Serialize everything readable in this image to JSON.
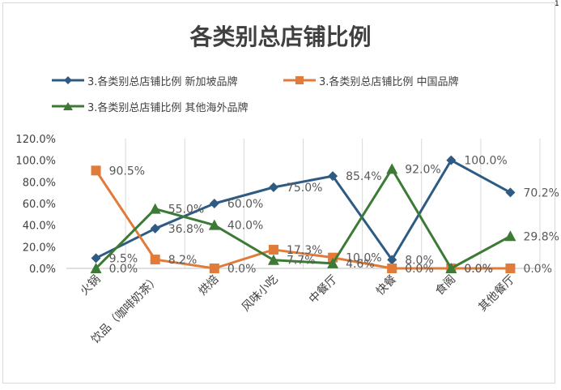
{
  "page": {
    "corner_mark": "1"
  },
  "chart_data": {
    "type": "line",
    "title": "各类别总店铺比例",
    "categories": [
      "火锅",
      "饮品（咖啡奶茶）",
      "烘焙",
      "风味小吃",
      "中餐厅",
      "快餐",
      "食阁",
      "其他餐厅"
    ],
    "y_ticks": [
      "0.0%",
      "20.0%",
      "40.0%",
      "60.0%",
      "80.0%",
      "100.0%",
      "120.0%"
    ],
    "ylim": [
      0,
      120
    ],
    "grid": "vertical",
    "legend_position": "top",
    "series": [
      {
        "name": "3.各类别总店铺比例 新加坡品牌",
        "color": "#2e5b84",
        "marker": "diamond",
        "values": [
          9.5,
          36.8,
          60.0,
          75.0,
          85.4,
          8.0,
          100.0,
          70.2
        ],
        "labels": [
          "9.5%",
          "36.8%",
          "60.0%",
          "75.0%",
          "85.4%",
          "8.0%",
          "100.0%",
          "70.2%"
        ]
      },
      {
        "name": "3.各类别总店铺比例 中国品牌",
        "color": "#e07b39",
        "marker": "square",
        "values": [
          90.5,
          8.2,
          0.0,
          17.3,
          10.0,
          0.0,
          0.0,
          0.0
        ],
        "labels": [
          "90.5%",
          "8.2%",
          "0.0%",
          "17.3%",
          "10.0%",
          "0.0%",
          "0.0%",
          "0.0%"
        ]
      },
      {
        "name": "3.各类别总店铺比例 其他海外品牌",
        "color": "#3c7a36",
        "marker": "triangle",
        "values": [
          0.0,
          55.0,
          40.0,
          7.7,
          4.6,
          92.0,
          0.0,
          29.8
        ],
        "labels": [
          "0.0%",
          "55.0%",
          "40.0%",
          "7.7%",
          "4.6%",
          "92.0%",
          "0.0%",
          "29.8%"
        ]
      }
    ]
  }
}
